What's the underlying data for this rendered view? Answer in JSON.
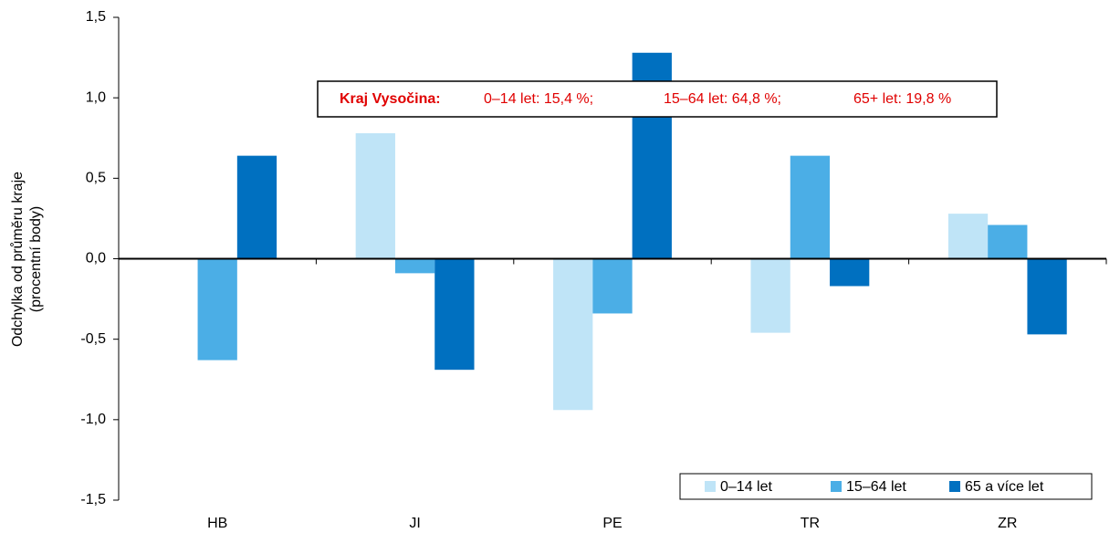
{
  "chart_data": {
    "type": "bar",
    "y_label": [
      "Odchylka od průměru kraje",
      "(procentní body)"
    ],
    "annotation": {
      "title": "Kraj Vysočina:",
      "items": [
        "0–14 let: 15,4 %;",
        "15–64 let: 64,8 %;",
        "65+ let: 19,8 %"
      ]
    },
    "categories": [
      "HB",
      "JI",
      "PE",
      "TR",
      "ZR"
    ],
    "series": [
      {
        "name": "0–14 let",
        "color": "#bfe4f7",
        "values": [
          0,
          0.78,
          -0.94,
          -0.46,
          0.28
        ]
      },
      {
        "name": "15–64 let",
        "color": "#4baee6",
        "values": [
          -0.63,
          -0.09,
          -0.34,
          0.64,
          0.21
        ]
      },
      {
        "name": "65 a více let",
        "color": "#0070c0",
        "values": [
          0.64,
          -0.69,
          1.28,
          -0.17,
          -0.47
        ]
      }
    ],
    "ylim": [
      -1.5,
      1.5
    ],
    "yticks": [
      {
        "value": -1.5,
        "label": "-1,5"
      },
      {
        "value": -1.0,
        "label": "-1,0"
      },
      {
        "value": -0.5,
        "label": "-0,5"
      },
      {
        "value": 0,
        "label": "0,0"
      },
      {
        "value": 0.5,
        "label": "0,5"
      },
      {
        "value": 1.0,
        "label": "1,0"
      },
      {
        "value": 1.5,
        "label": "1,5"
      }
    ],
    "legend": "lower right"
  }
}
